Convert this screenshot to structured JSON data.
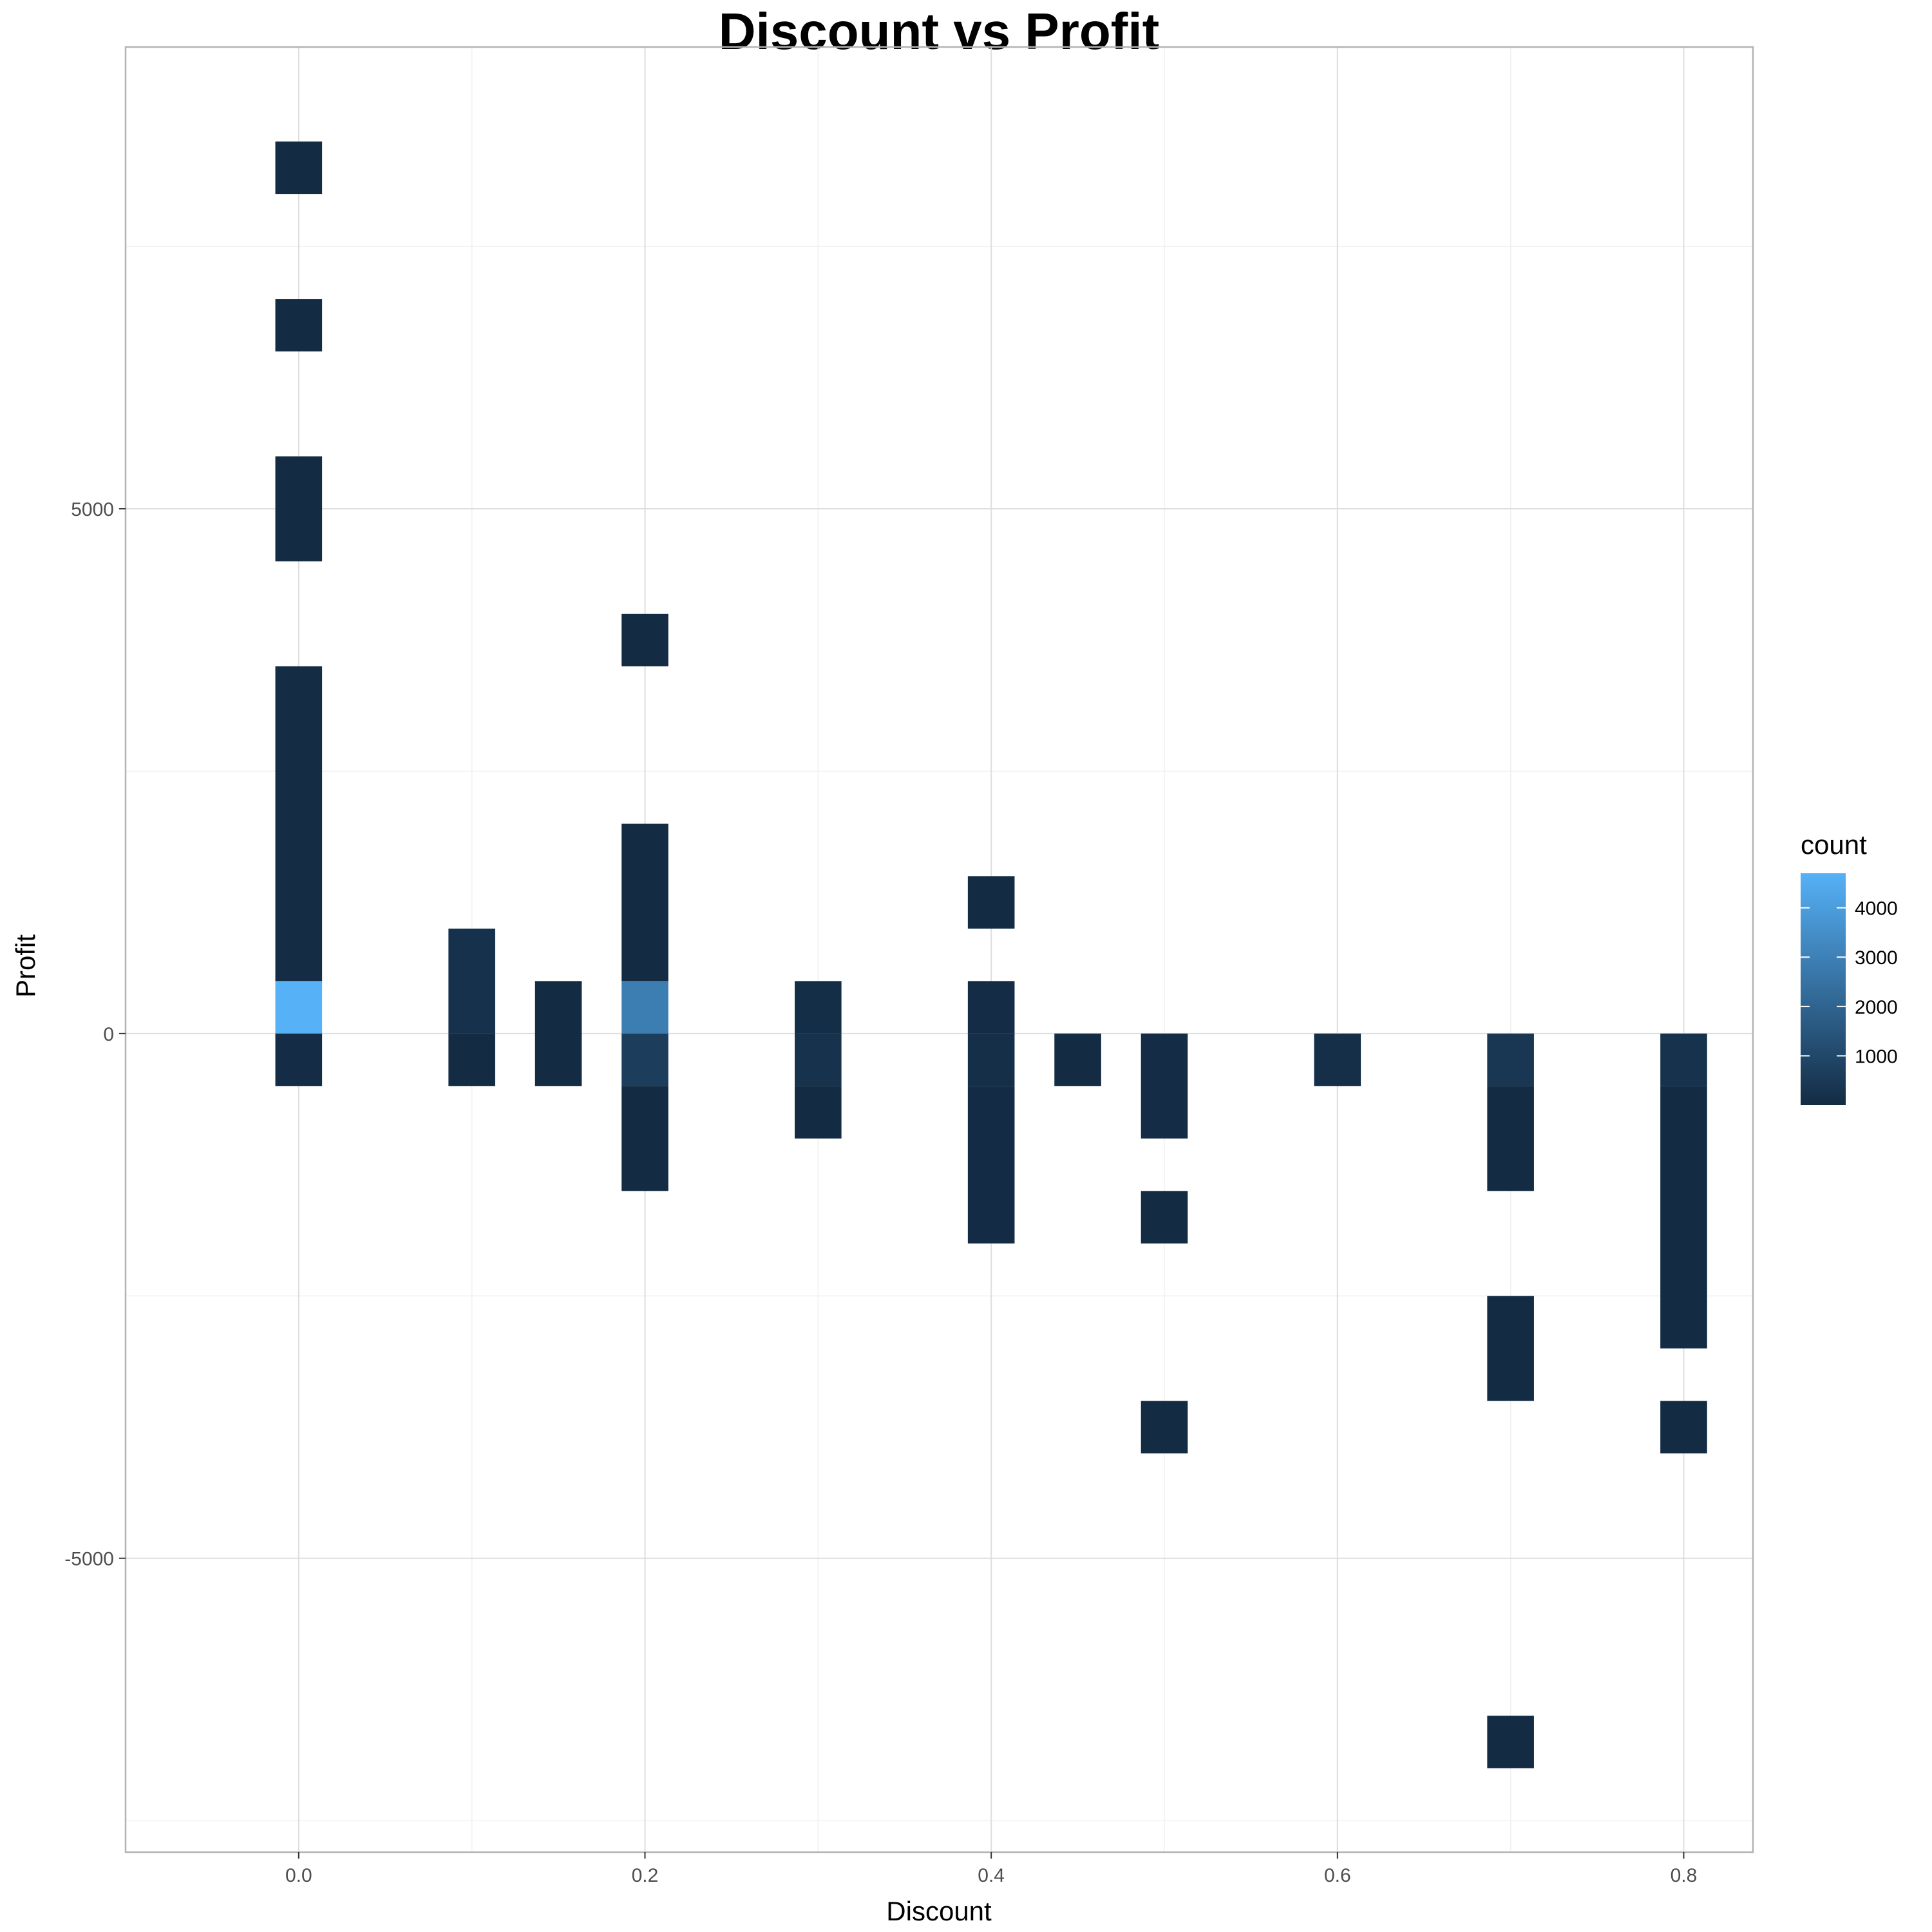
{
  "chart_data": {
    "type": "heatmap",
    "title": "Discount vs Profit",
    "xlabel": "Discount",
    "ylabel": "Profit",
    "xlim": [
      -0.1,
      0.84
    ],
    "ylim": [
      -7800,
      9400
    ],
    "x_ticks": [
      {
        "value": 0.0,
        "label": "0.0"
      },
      {
        "value": 0.2,
        "label": "0.2"
      },
      {
        "value": 0.4,
        "label": "0.4"
      },
      {
        "value": 0.6,
        "label": "0.6"
      },
      {
        "value": 0.8,
        "label": "0.8"
      }
    ],
    "y_ticks": [
      {
        "value": 5000,
        "label": "5000"
      },
      {
        "value": 0,
        "label": "0"
      },
      {
        "value": -5000,
        "label": "-5000"
      }
    ],
    "bin_width_x": 0.027,
    "bin_height_y": 500,
    "grid": true,
    "legend": {
      "title": "count",
      "position": "right",
      "min": 1,
      "max": 4700,
      "ticks": [
        {
          "value": 1000,
          "label": "1000"
        },
        {
          "value": 2000,
          "label": "2000"
        },
        {
          "value": 3000,
          "label": "3000"
        },
        {
          "value": 4000,
          "label": "4000"
        }
      ],
      "low_color": "#132B43",
      "high_color": "#56B1F7"
    },
    "bins": [
      {
        "x": 0.0,
        "y0": 8000,
        "y1": 8500,
        "count": 1
      },
      {
        "x": 0.0,
        "y0": 6500,
        "y1": 7000,
        "count": 1
      },
      {
        "x": 0.0,
        "y0": 4500,
        "y1": 5500,
        "count": 2
      },
      {
        "x": 0.0,
        "y0": 500,
        "y1": 3500,
        "count": 40
      },
      {
        "x": 0.0,
        "y0": 0,
        "y1": 500,
        "count": 4700
      },
      {
        "x": 0.0,
        "y0": -500,
        "y1": 0,
        "count": 50
      },
      {
        "x": 0.1,
        "y0": 0,
        "y1": 1000,
        "count": 200
      },
      {
        "x": 0.1,
        "y0": -500,
        "y1": 0,
        "count": 20
      },
      {
        "x": 0.15,
        "y0": -500,
        "y1": 500,
        "count": 30
      },
      {
        "x": 0.2,
        "y0": 3500,
        "y1": 4000,
        "count": 1
      },
      {
        "x": 0.2,
        "y0": 500,
        "y1": 2000,
        "count": 30
      },
      {
        "x": 0.2,
        "y0": 0,
        "y1": 500,
        "count": 2900
      },
      {
        "x": 0.2,
        "y0": -500,
        "y1": 0,
        "count": 650
      },
      {
        "x": 0.2,
        "y0": -1500,
        "y1": -500,
        "count": 10
      },
      {
        "x": 0.3,
        "y0": 0,
        "y1": 500,
        "count": 100
      },
      {
        "x": 0.3,
        "y0": -500,
        "y1": 0,
        "count": 250
      },
      {
        "x": 0.3,
        "y0": -1000,
        "y1": -500,
        "count": 10
      },
      {
        "x": 0.4,
        "y0": 1000,
        "y1": 1500,
        "count": 1
      },
      {
        "x": 0.4,
        "y0": 0,
        "y1": 500,
        "count": 50
      },
      {
        "x": 0.4,
        "y0": -500,
        "y1": 0,
        "count": 150
      },
      {
        "x": 0.4,
        "y0": -2000,
        "y1": -500,
        "count": 15
      },
      {
        "x": 0.45,
        "y0": -500,
        "y1": 0,
        "count": 11
      },
      {
        "x": 0.5,
        "y0": -1000,
        "y1": 0,
        "count": 50
      },
      {
        "x": 0.5,
        "y0": -2000,
        "y1": -1500,
        "count": 3
      },
      {
        "x": 0.5,
        "y0": -4000,
        "y1": -3500,
        "count": 2
      },
      {
        "x": 0.6,
        "y0": -500,
        "y1": 0,
        "count": 138
      },
      {
        "x": 0.7,
        "y0": -500,
        "y1": 0,
        "count": 400
      },
      {
        "x": 0.7,
        "y0": -1500,
        "y1": -500,
        "count": 20
      },
      {
        "x": 0.7,
        "y0": -3500,
        "y1": -2500,
        "count": 2
      },
      {
        "x": 0.7,
        "y0": -7000,
        "y1": -6500,
        "count": 1
      },
      {
        "x": 0.8,
        "y0": -500,
        "y1": 0,
        "count": 250
      },
      {
        "x": 0.8,
        "y0": -3000,
        "y1": -500,
        "count": 30
      },
      {
        "x": 0.8,
        "y0": -4000,
        "y1": -3500,
        "count": 2
      }
    ]
  }
}
